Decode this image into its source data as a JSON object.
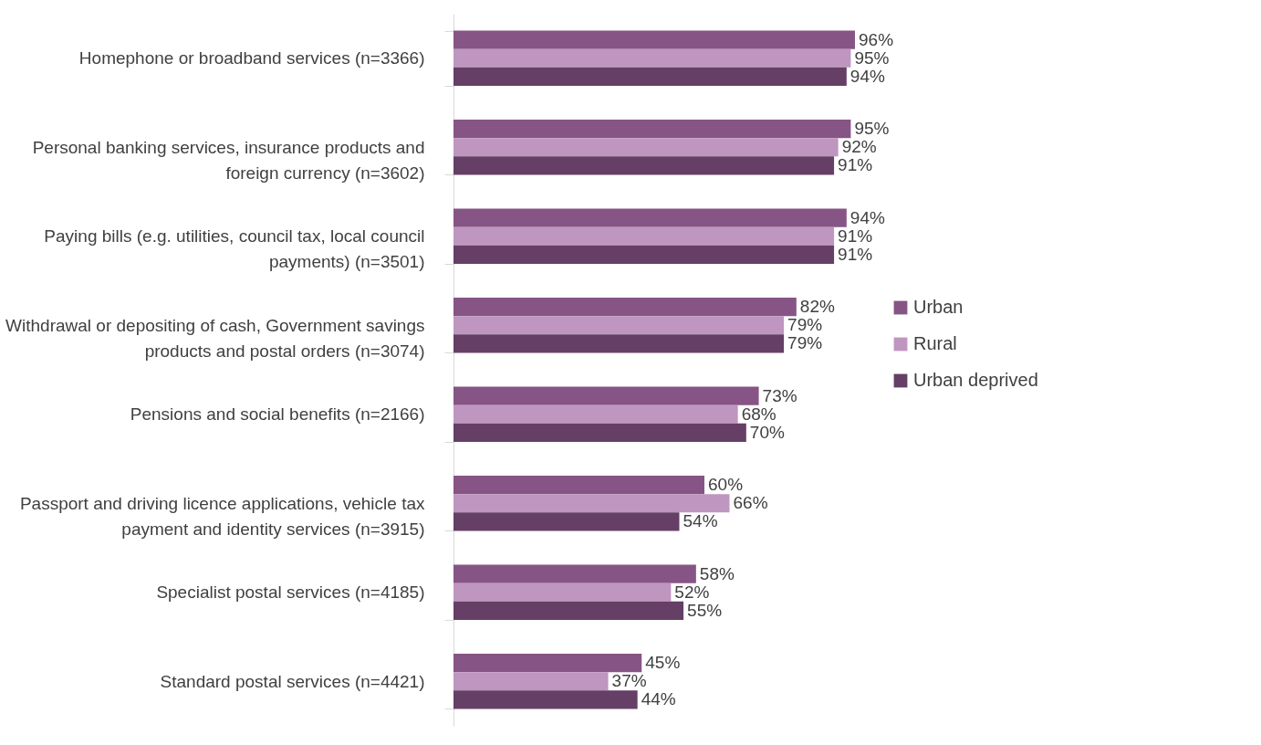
{
  "chart_data": {
    "type": "bar",
    "orientation": "horizontal",
    "legend": "right",
    "categories": [
      "Homephone or broadband services (n=3366)",
      "Personal banking services, insurance products and foreign currency (n=3602)",
      "Paying bills (e.g. utilities, council tax, local council payments) (n=3501)",
      "Withdrawal or depositing of cash, Government savings products and postal orders (n=3074)",
      "Pensions and social benefits (n=2166)",
      "Passport and driving licence applications, vehicle tax payment and identity services (n=3915)",
      "Specialist postal services (n=4185)",
      "Standard postal services (n=4421)"
    ],
    "series": [
      {
        "name": "Urban",
        "color": "#875486",
        "values": [
          96,
          95,
          94,
          82,
          73,
          60,
          58,
          45
        ],
        "value_labels": [
          "96%",
          "95%",
          "94%",
          "82%",
          "73%",
          "60%",
          "58%",
          "45%"
        ]
      },
      {
        "name": "Rural",
        "color": "#bf96c0",
        "values": [
          95,
          92,
          91,
          79,
          68,
          66,
          52,
          37
        ],
        "value_labels": [
          "95%",
          "92%",
          "91%",
          "79%",
          "68%",
          "66%",
          "52%",
          "37%"
        ]
      },
      {
        "name": "Urban deprived",
        "color": "#653f66",
        "values": [
          94,
          91,
          91,
          79,
          70,
          54,
          55,
          44
        ],
        "value_labels": [
          "94%",
          "91%",
          "91%",
          "79%",
          "70%",
          "54%",
          "55%",
          "44%"
        ]
      }
    ]
  }
}
